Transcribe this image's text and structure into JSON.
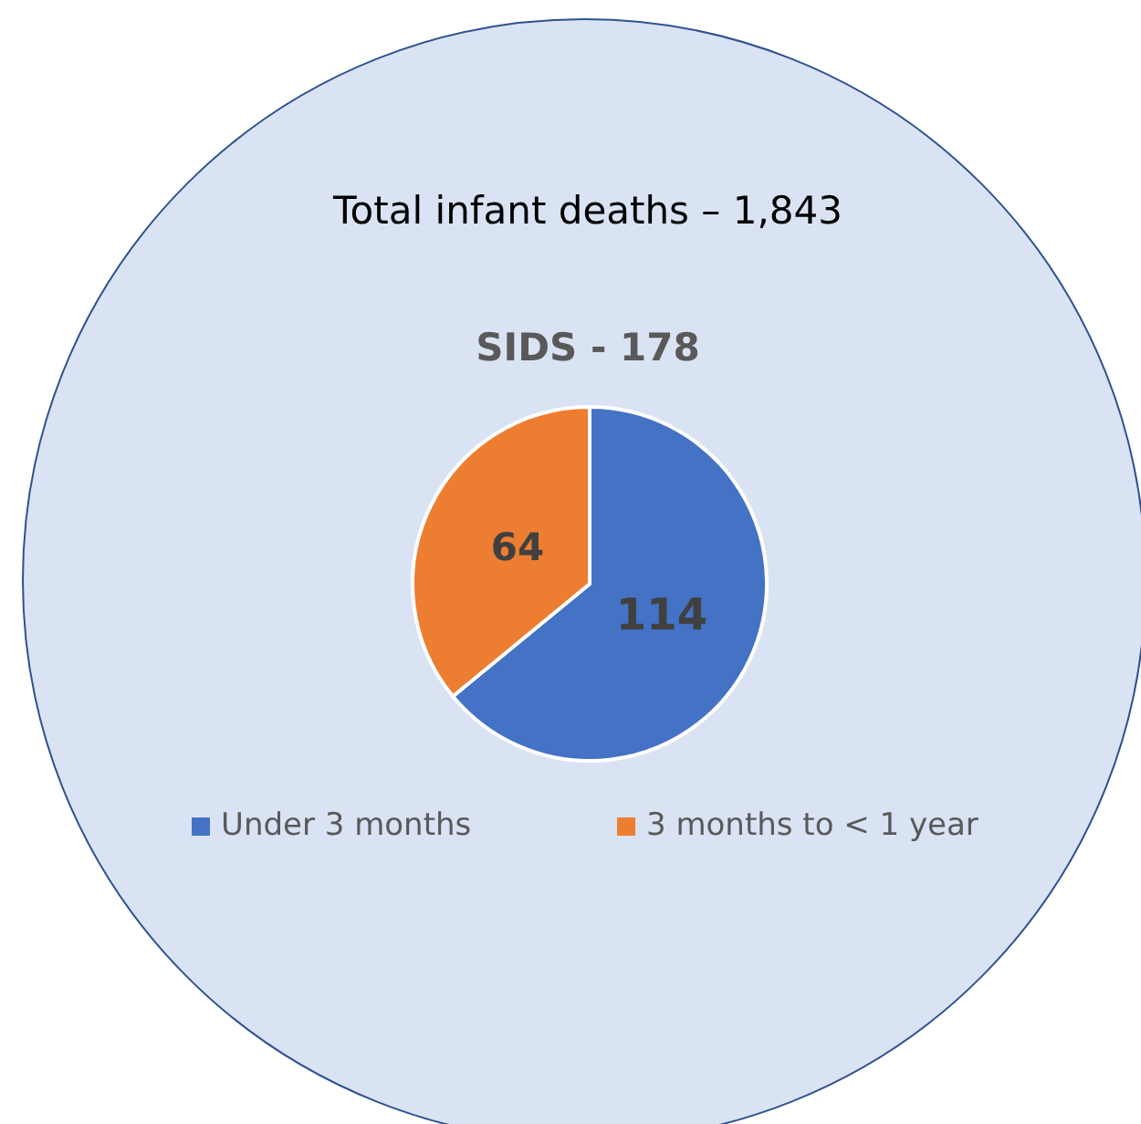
{
  "chart_data": {
    "type": "pie",
    "title": "SIDS - 178",
    "annotations": [
      "Total infant deaths – 1,843"
    ],
    "categories": [
      "Under 3 months",
      "3 months to < 1 year"
    ],
    "values": [
      114,
      64
    ],
    "colors": [
      "#4472c4",
      "#ed7d31"
    ],
    "data_labels": true,
    "legend": "bottom"
  }
}
